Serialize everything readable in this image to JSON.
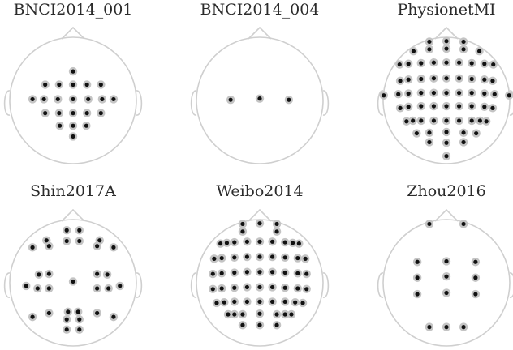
{
  "colors": {
    "outline": "#cfcfcf",
    "electrode_halo": "#c4c4c4",
    "electrode_core": "#111111",
    "title": "#2b2b2b"
  },
  "montages": [
    {
      "title": "BNCI2014_001",
      "electrodes": [
        [
          0,
          0.46
        ],
        [
          -0.44,
          0.25
        ],
        [
          -0.22,
          0.25
        ],
        [
          0,
          0.25
        ],
        [
          0.22,
          0.25
        ],
        [
          0.44,
          0.25
        ],
        [
          -0.64,
          0.02
        ],
        [
          -0.46,
          0.02
        ],
        [
          -0.24,
          0.02
        ],
        [
          0,
          0.02
        ],
        [
          0.24,
          0.02
        ],
        [
          0.46,
          0.02
        ],
        [
          0.64,
          0.02
        ],
        [
          -0.44,
          -0.2
        ],
        [
          -0.22,
          -0.2
        ],
        [
          0,
          -0.2
        ],
        [
          0.22,
          -0.2
        ],
        [
          0.44,
          -0.2
        ],
        [
          -0.21,
          -0.4
        ],
        [
          0,
          -0.4
        ],
        [
          0.21,
          -0.4
        ],
        [
          0,
          -0.57
        ]
      ]
    },
    {
      "title": "BNCI2014_004",
      "electrodes": [
        [
          -0.46,
          0.01
        ],
        [
          0,
          0.03
        ],
        [
          0.46,
          0.01
        ]
      ]
    },
    {
      "title": "PhysionetMI",
      "electrodes": [
        [
          -0.27,
          0.93
        ],
        [
          0,
          0.94
        ],
        [
          0.27,
          0.93
        ],
        [
          -0.52,
          0.78
        ],
        [
          -0.27,
          0.81
        ],
        [
          0,
          0.82
        ],
        [
          0.27,
          0.81
        ],
        [
          0.52,
          0.78
        ],
        [
          -0.74,
          0.57
        ],
        [
          -0.6,
          0.58
        ],
        [
          -0.4,
          0.59
        ],
        [
          -0.2,
          0.6
        ],
        [
          0,
          0.6
        ],
        [
          0.2,
          0.6
        ],
        [
          0.4,
          0.59
        ],
        [
          0.6,
          0.58
        ],
        [
          0.74,
          0.57
        ],
        [
          -0.73,
          0.31
        ],
        [
          -0.6,
          0.33
        ],
        [
          -0.4,
          0.34
        ],
        [
          -0.2,
          0.35
        ],
        [
          0,
          0.35
        ],
        [
          0.2,
          0.35
        ],
        [
          0.4,
          0.34
        ],
        [
          0.6,
          0.33
        ],
        [
          0.73,
          0.31
        ],
        [
          -0.99,
          0.08
        ],
        [
          -0.76,
          0.1
        ],
        [
          -0.6,
          0.11
        ],
        [
          -0.4,
          0.12
        ],
        [
          -0.2,
          0.12
        ],
        [
          0,
          0.12
        ],
        [
          0.2,
          0.12
        ],
        [
          0.4,
          0.12
        ],
        [
          0.6,
          0.11
        ],
        [
          0.76,
          0.1
        ],
        [
          0.99,
          0.08
        ],
        [
          -0.73,
          -0.12
        ],
        [
          -0.6,
          -0.1
        ],
        [
          -0.4,
          -0.09
        ],
        [
          -0.2,
          -0.09
        ],
        [
          0,
          -0.09
        ],
        [
          0.2,
          -0.09
        ],
        [
          0.4,
          -0.09
        ],
        [
          0.6,
          -0.1
        ],
        [
          0.73,
          -0.12
        ],
        [
          -0.63,
          -0.33
        ],
        [
          -0.53,
          -0.32
        ],
        [
          -0.4,
          -0.32
        ],
        [
          -0.2,
          -0.32
        ],
        [
          0,
          -0.32
        ],
        [
          0.2,
          -0.32
        ],
        [
          0.4,
          -0.32
        ],
        [
          0.53,
          -0.32
        ],
        [
          0.63,
          -0.33
        ],
        [
          -0.47,
          -0.52
        ],
        [
          -0.27,
          -0.51
        ],
        [
          0,
          -0.5
        ],
        [
          0.27,
          -0.51
        ],
        [
          0.47,
          -0.52
        ],
        [
          -0.27,
          -0.66
        ],
        [
          0,
          -0.67
        ],
        [
          0.27,
          -0.66
        ],
        [
          0,
          -0.88
        ]
      ]
    },
    {
      "title": "Shin2017A",
      "electrodes": [
        [
          -0.1,
          0.83
        ],
        [
          0.1,
          0.83
        ],
        [
          -0.42,
          0.67
        ],
        [
          -0.1,
          0.66
        ],
        [
          0.1,
          0.66
        ],
        [
          0.42,
          0.67
        ],
        [
          -0.64,
          0.56
        ],
        [
          -0.38,
          0.58
        ],
        [
          0.38,
          0.58
        ],
        [
          0.64,
          0.56
        ],
        [
          -0.54,
          0.13
        ],
        [
          -0.38,
          0.14
        ],
        [
          0.38,
          0.14
        ],
        [
          0.54,
          0.13
        ],
        [
          -0.74,
          -0.05
        ],
        [
          -0.56,
          -0.09
        ],
        [
          -0.38,
          -0.09
        ],
        [
          0,
          0.02
        ],
        [
          0.38,
          -0.09
        ],
        [
          0.56,
          -0.09
        ],
        [
          0.74,
          -0.05
        ],
        [
          -0.64,
          -0.54
        ],
        [
          -0.38,
          -0.48
        ],
        [
          -0.08,
          -0.46
        ],
        [
          0.08,
          -0.46
        ],
        [
          0.38,
          -0.48
        ],
        [
          0.64,
          -0.54
        ],
        [
          -0.1,
          -0.58
        ],
        [
          0.1,
          -0.58
        ],
        [
          -0.1,
          -0.74
        ],
        [
          0.1,
          -0.74
        ]
      ]
    },
    {
      "title": "Weibo2014",
      "electrodes": [
        [
          -0.27,
          0.93
        ],
        [
          0,
          0.94
        ],
        [
          0.27,
          0.93
        ],
        [
          -0.27,
          0.81
        ],
        [
          0.27,
          0.81
        ],
        [
          -0.62,
          0.62
        ],
        [
          -0.52,
          0.63
        ],
        [
          -0.4,
          0.64
        ],
        [
          -0.2,
          0.65
        ],
        [
          0,
          0.65
        ],
        [
          0.2,
          0.65
        ],
        [
          0.4,
          0.64
        ],
        [
          0.52,
          0.63
        ],
        [
          0.62,
          0.62
        ],
        [
          -0.72,
          0.38
        ],
        [
          -0.6,
          0.39
        ],
        [
          -0.4,
          0.4
        ],
        [
          -0.2,
          0.41
        ],
        [
          0,
          0.41
        ],
        [
          0.2,
          0.41
        ],
        [
          0.4,
          0.4
        ],
        [
          0.6,
          0.39
        ],
        [
          0.72,
          0.38
        ],
        [
          -0.74,
          0.14
        ],
        [
          -0.6,
          0.15
        ],
        [
          -0.4,
          0.16
        ],
        [
          -0.2,
          0.17
        ],
        [
          0,
          0.17
        ],
        [
          0.2,
          0.17
        ],
        [
          0.4,
          0.16
        ],
        [
          0.6,
          0.15
        ],
        [
          0.74,
          0.14
        ],
        [
          -0.74,
          -0.1
        ],
        [
          -0.6,
          -0.09
        ],
        [
          -0.4,
          -0.08
        ],
        [
          -0.2,
          -0.07
        ],
        [
          0,
          -0.07
        ],
        [
          0.2,
          -0.07
        ],
        [
          0.4,
          -0.08
        ],
        [
          0.6,
          -0.09
        ],
        [
          0.74,
          -0.1
        ],
        [
          -0.68,
          -0.32
        ],
        [
          -0.56,
          -0.31
        ],
        [
          -0.4,
          -0.3
        ],
        [
          -0.2,
          -0.3
        ],
        [
          0,
          -0.3
        ],
        [
          0.2,
          -0.3
        ],
        [
          0.4,
          -0.3
        ],
        [
          0.56,
          -0.31
        ],
        [
          0.68,
          -0.32
        ],
        [
          -0.5,
          -0.5
        ],
        [
          -0.4,
          -0.5
        ],
        [
          -0.27,
          -0.5
        ],
        [
          0,
          -0.49
        ],
        [
          0.27,
          -0.5
        ],
        [
          0.4,
          -0.5
        ],
        [
          0.5,
          -0.5
        ],
        [
          -0.27,
          -0.67
        ],
        [
          0,
          -0.67
        ],
        [
          0.27,
          -0.67
        ]
      ]
    },
    {
      "title": "Zhou2016",
      "electrodes": [
        [
          -0.27,
          0.93
        ],
        [
          0.27,
          0.93
        ],
        [
          -0.46,
          0.33
        ],
        [
          0,
          0.34
        ],
        [
          0.46,
          0.33
        ],
        [
          -0.46,
          0.08
        ],
        [
          0,
          0.1
        ],
        [
          0.46,
          0.08
        ],
        [
          -0.46,
          -0.18
        ],
        [
          0,
          -0.16
        ],
        [
          0.46,
          -0.18
        ],
        [
          -0.27,
          -0.7
        ],
        [
          0,
          -0.7
        ],
        [
          0.27,
          -0.7
        ]
      ]
    }
  ]
}
